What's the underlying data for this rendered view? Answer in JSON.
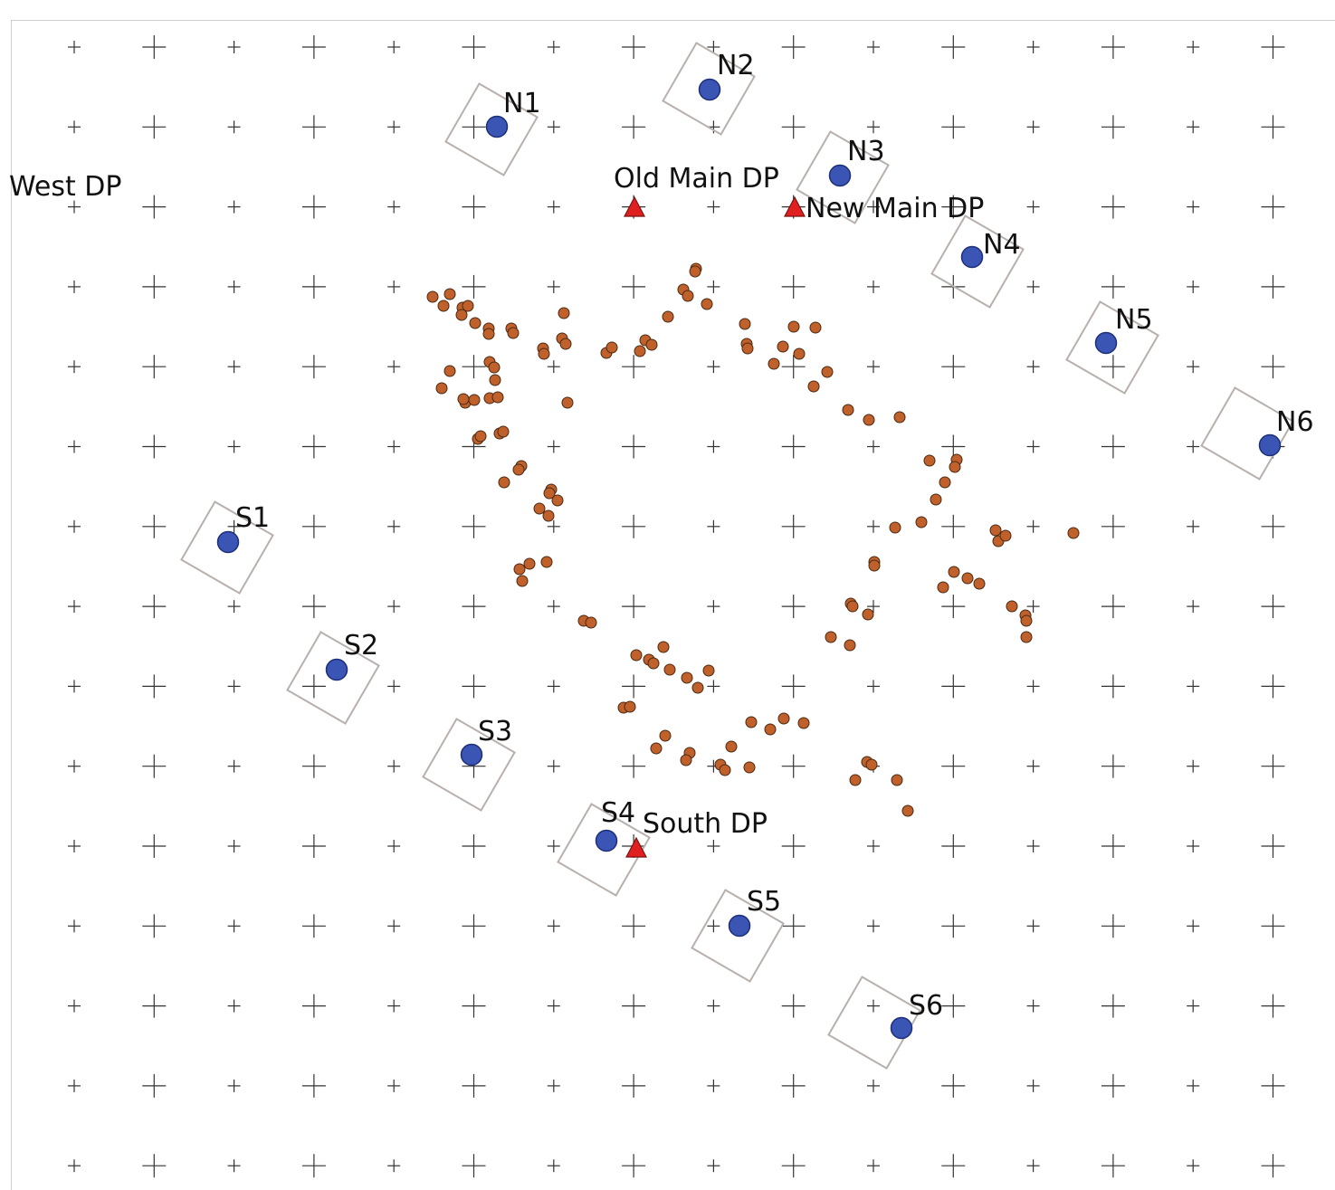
{
  "colors": {
    "station": "#3a55b4",
    "event": "#c0602a",
    "drill_point": "#e02020",
    "grid": "#333333",
    "box": "#b8b0ac"
  },
  "stations": [
    {
      "id": "N1",
      "label": "N1"
    },
    {
      "id": "N2",
      "label": "N2"
    },
    {
      "id": "N3",
      "label": "N3"
    },
    {
      "id": "N4",
      "label": "N4"
    },
    {
      "id": "N5",
      "label": "N5"
    },
    {
      "id": "N6",
      "label": "N6"
    },
    {
      "id": "S1",
      "label": "S1"
    },
    {
      "id": "S2",
      "label": "S2"
    },
    {
      "id": "S3",
      "label": "S3"
    },
    {
      "id": "S4",
      "label": "S4"
    },
    {
      "id": "S5",
      "label": "S5"
    },
    {
      "id": "S6",
      "label": "S6"
    }
  ],
  "drill_points": [
    {
      "id": "west",
      "label": "West DP"
    },
    {
      "id": "old-main",
      "label": "Old Main DP"
    },
    {
      "id": "new-main",
      "label": "New Main DP"
    },
    {
      "id": "south",
      "label": "South DP"
    }
  ]
}
